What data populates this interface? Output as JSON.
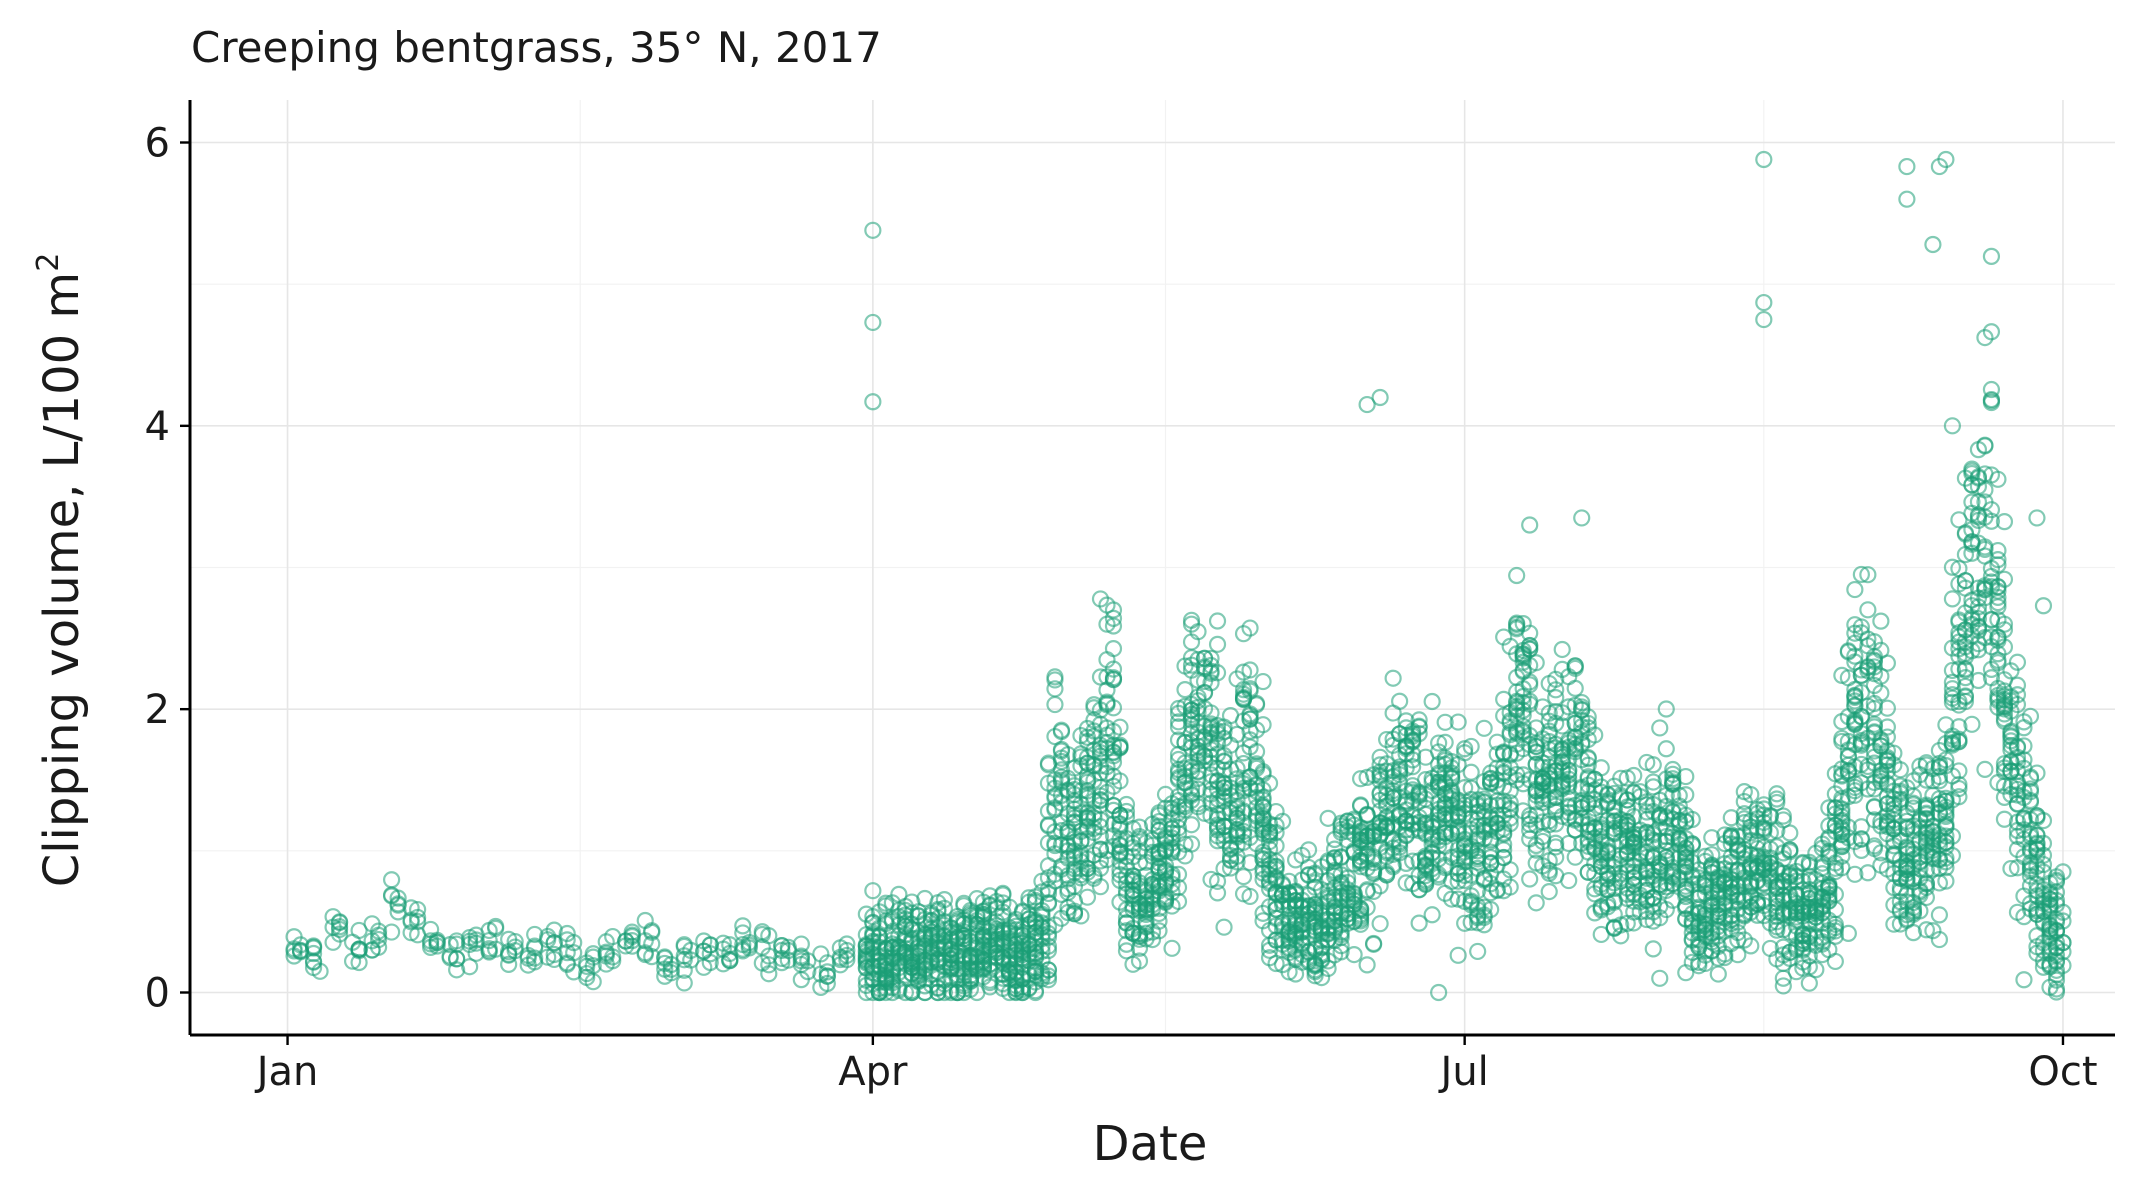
{
  "chart_data": {
    "type": "scatter",
    "title": "Creeping bentgrass, 35° N, 2017",
    "xlabel": "Date",
    "ylabel": "Clipping volume, L/100 m²",
    "ylabel_main": "Clipping volume, L/100 m",
    "ylabel_sup": "2",
    "x_type": "date",
    "xlim": [
      "2016-12-17",
      "2017-10-09"
    ],
    "ylim": [
      -0.3,
      6.3
    ],
    "x_ticks": [
      {
        "date": "2017-01-01",
        "label": "Jan"
      },
      {
        "date": "2017-04-01",
        "label": "Apr"
      },
      {
        "date": "2017-07-01",
        "label": "Jul"
      },
      {
        "date": "2017-10-01",
        "label": "Oct"
      }
    ],
    "x_minor_ticks": [
      "2017-02-15",
      "2017-05-16",
      "2017-08-16"
    ],
    "y_ticks": [
      0,
      2,
      4,
      6
    ],
    "y_minor_ticks": [
      1,
      3,
      5
    ],
    "grid": true,
    "point_color": "#1b9e77",
    "levels": [
      [
        "2017-01-02",
        0.3
      ],
      [
        "2017-01-07",
        0.22
      ],
      [
        "2017-01-10",
        0.55
      ],
      [
        "2017-01-13",
        0.2
      ],
      [
        "2017-01-19",
        0.75
      ],
      [
        "2017-01-23",
        0.3
      ],
      [
        "2017-02-02",
        0.32
      ],
      [
        "2017-02-06",
        0.33
      ],
      [
        "2017-02-13",
        0.32
      ],
      [
        "2017-02-17",
        0.2
      ],
      [
        "2017-02-24",
        0.4
      ],
      [
        "2017-03-01",
        0.17
      ],
      [
        "2017-03-07",
        0.25
      ],
      [
        "2017-03-13",
        0.38
      ],
      [
        "2017-03-18",
        0.3
      ],
      [
        "2017-03-23",
        0.17
      ],
      [
        "2017-03-27",
        0.2
      ],
      [
        "2017-04-03",
        0.27
      ],
      [
        "2017-04-07",
        0.28
      ],
      [
        "2017-04-11",
        0.3
      ],
      [
        "2017-04-16",
        0.27
      ],
      [
        "2017-04-20",
        0.3
      ],
      [
        "2017-04-24",
        0.22
      ],
      [
        "2017-04-28",
        0.42
      ],
      [
        "2017-04-30",
        1.6
      ],
      [
        "2017-05-02",
        0.9
      ],
      [
        "2017-05-05",
        1.5
      ],
      [
        "2017-05-08",
        1.9
      ],
      [
        "2017-05-11",
        0.65
      ],
      [
        "2017-05-14",
        0.75
      ],
      [
        "2017-05-17",
        0.9
      ],
      [
        "2017-05-20",
        1.8
      ],
      [
        "2017-05-23",
        1.9
      ],
      [
        "2017-05-26",
        1.2
      ],
      [
        "2017-05-29",
        1.8
      ],
      [
        "2017-06-01",
        1.0
      ],
      [
        "2017-06-04",
        0.5
      ],
      [
        "2017-06-07",
        0.5
      ],
      [
        "2017-06-10",
        0.55
      ],
      [
        "2017-06-13",
        0.8
      ],
      [
        "2017-06-16",
        0.9
      ],
      [
        "2017-06-19",
        1.2
      ],
      [
        "2017-06-22",
        1.4
      ],
      [
        "2017-06-25",
        1.2
      ],
      [
        "2017-06-28",
        1.3
      ],
      [
        "2017-07-01",
        1.1
      ],
      [
        "2017-07-04",
        1.0
      ],
      [
        "2017-07-07",
        1.3
      ],
      [
        "2017-07-10",
        2.2
      ],
      [
        "2017-07-13",
        1.4
      ],
      [
        "2017-07-16",
        1.5
      ],
      [
        "2017-07-19",
        1.7
      ],
      [
        "2017-07-22",
        1.1
      ],
      [
        "2017-07-25",
        1.0
      ],
      [
        "2017-07-28",
        0.95
      ],
      [
        "2017-07-31",
        1.0
      ],
      [
        "2017-08-03",
        1.2
      ],
      [
        "2017-08-06",
        0.6
      ],
      [
        "2017-08-09",
        0.6
      ],
      [
        "2017-08-12",
        0.75
      ],
      [
        "2017-08-15",
        0.9
      ],
      [
        "2017-08-18",
        0.85
      ],
      [
        "2017-08-21",
        0.6
      ],
      [
        "2017-08-24",
        0.5
      ],
      [
        "2017-08-27",
        0.8
      ],
      [
        "2017-08-30",
        1.8
      ],
      [
        "2017-09-02",
        2.0
      ],
      [
        "2017-09-05",
        1.3
      ],
      [
        "2017-09-08",
        0.9
      ],
      [
        "2017-09-11",
        1.0
      ],
      [
        "2017-09-14",
        1.6
      ],
      [
        "2017-09-17",
        2.9
      ],
      [
        "2017-09-20",
        3.4
      ],
      [
        "2017-09-23",
        1.8
      ],
      [
        "2017-09-26",
        1.3
      ],
      [
        "2017-09-29",
        0.45
      ],
      [
        "2017-10-01",
        0.42
      ]
    ],
    "highlights": [
      [
        "2017-04-01",
        5.38
      ],
      [
        "2017-04-01",
        4.73
      ],
      [
        "2017-04-01",
        4.17
      ],
      [
        "2017-06-16",
        4.15
      ],
      [
        "2017-06-18",
        4.2
      ],
      [
        "2017-07-11",
        3.3
      ],
      [
        "2017-07-19",
        3.35
      ],
      [
        "2017-08-16",
        5.88
      ],
      [
        "2017-08-16",
        4.87
      ],
      [
        "2017-08-16",
        4.75
      ],
      [
        "2017-09-07",
        5.83
      ],
      [
        "2017-09-07",
        5.6
      ],
      [
        "2017-09-11",
        5.28
      ],
      [
        "2017-09-12",
        5.83
      ],
      [
        "2017-09-13",
        5.88
      ],
      [
        "2017-09-14",
        4.0
      ],
      [
        "2017-09-28",
        2.73
      ],
      [
        "2017-09-27",
        3.35
      ],
      [
        "2017-06-27",
        0.0
      ],
      [
        "2017-09-25",
        0.09
      ],
      [
        "2017-07-31",
        0.1
      ],
      [
        "2017-08-04",
        0.14
      ]
    ]
  }
}
